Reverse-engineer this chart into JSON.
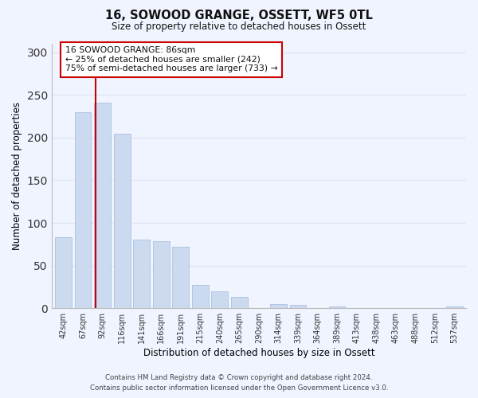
{
  "title": "16, SOWOOD GRANGE, OSSETT, WF5 0TL",
  "subtitle": "Size of property relative to detached houses in Ossett",
  "xlabel": "Distribution of detached houses by size in Ossett",
  "ylabel": "Number of detached properties",
  "categories": [
    "42sqm",
    "67sqm",
    "92sqm",
    "116sqm",
    "141sqm",
    "166sqm",
    "191sqm",
    "215sqm",
    "240sqm",
    "265sqm",
    "290sqm",
    "314sqm",
    "339sqm",
    "364sqm",
    "389sqm",
    "413sqm",
    "438sqm",
    "463sqm",
    "488sqm",
    "512sqm",
    "537sqm"
  ],
  "values": [
    83,
    230,
    241,
    205,
    80,
    79,
    72,
    27,
    20,
    13,
    0,
    5,
    4,
    0,
    2,
    0,
    0,
    0,
    0,
    0,
    2
  ],
  "bar_color": "#ccdaf0",
  "bar_edge_color": "#a8c0e0",
  "vline_x": 1.64,
  "vline_color": "#cc0000",
  "annotation_text": "16 SOWOOD GRANGE: 86sqm\n← 25% of detached houses are smaller (242)\n75% of semi-detached houses are larger (733) →",
  "annotation_box_color": "#ffffff",
  "annotation_box_edge": "#cc0000",
  "ylim": [
    0,
    310
  ],
  "yticks": [
    0,
    50,
    100,
    150,
    200,
    250,
    300
  ],
  "footer_line1": "Contains HM Land Registry data © Crown copyright and database right 2024.",
  "footer_line2": "Contains public sector information licensed under the Open Government Licence v3.0.",
  "bg_color": "#f0f4ff",
  "grid_color": "#dde5f5"
}
